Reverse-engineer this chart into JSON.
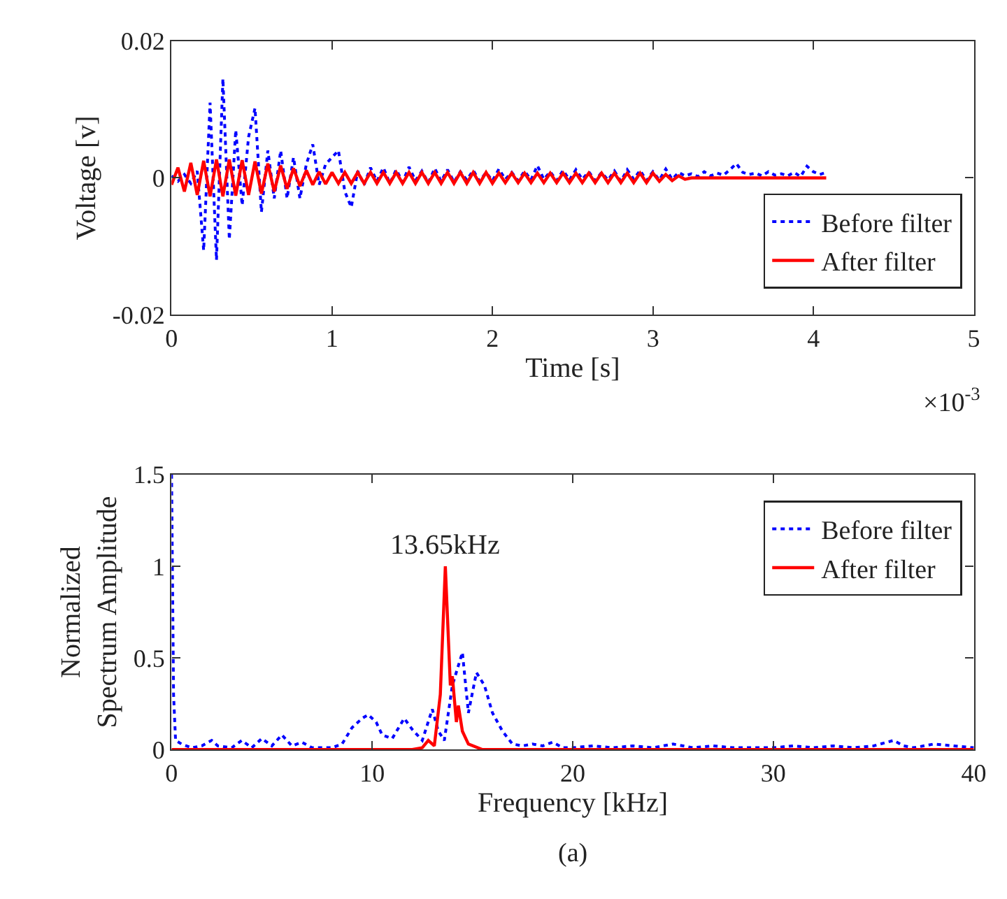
{
  "chart_data": [
    {
      "type": "line",
      "xlabel": "Time [s]",
      "ylabel": "Voltage [v]",
      "xlim": [
        0,
        5
      ],
      "ylim": [
        -0.02,
        0.02
      ],
      "xticks": [
        0,
        1,
        2,
        3,
        4,
        5
      ],
      "yticks": [
        -0.02,
        0,
        0.02
      ],
      "legend": "bottom right",
      "annotations": [
        "×10$^{-3}$"
      ],
      "x": [
        0,
        0.04,
        0.08,
        0.12,
        0.16,
        0.2,
        0.24,
        0.28,
        0.32,
        0.36,
        0.4,
        0.44,
        0.48,
        0.52,
        0.56,
        0.6,
        0.64,
        0.68,
        0.72,
        0.76,
        0.8,
        0.84,
        0.88,
        0.92,
        0.96,
        1,
        1.04,
        1.08,
        1.12,
        1.16,
        1.2,
        1.24,
        1.28,
        1.32,
        1.36,
        1.4,
        1.44,
        1.48,
        1.52,
        1.56,
        1.6,
        1.64,
        1.68,
        1.72,
        1.76,
        1.8,
        1.84,
        1.88,
        1.92,
        1.96,
        2,
        2.04,
        2.08,
        2.12,
        2.16,
        2.2,
        2.24,
        2.28,
        2.32,
        2.36,
        2.4,
        2.44,
        2.48,
        2.52,
        2.56,
        2.6,
        2.64,
        2.68,
        2.72,
        2.76,
        2.8,
        2.84,
        2.88,
        2.92,
        2.96,
        3,
        3.04,
        3.08,
        3.12,
        3.16,
        3.2,
        3.24,
        3.28,
        3.32,
        3.36,
        3.4,
        3.44,
        3.48,
        3.52,
        3.56,
        3.6,
        3.64,
        3.68,
        3.72,
        3.76,
        3.8,
        3.84,
        3.88,
        3.92,
        3.96,
        4,
        4.04,
        4.08
      ],
      "series": [
        {
          "name": "Before filter",
          "color": "#0000ff",
          "line_style": "dotted",
          "values": [
            0.0003,
            -0.0005,
            0.0005,
            -0.0008,
            0.001,
            -0.0106,
            0.011,
            -0.012,
            0.0145,
            -0.009,
            0.007,
            -0.004,
            0.006,
            0.0102,
            -0.005,
            0.004,
            -0.003,
            0.004,
            -0.003,
            0.003,
            -0.003,
            0.002,
            0.0049,
            -0.001,
            0.002,
            0.003,
            0.004,
            -0.002,
            -0.0043,
            0.001,
            -0.001,
            0.0015,
            -0.0005,
            0.0015,
            -0.0008,
            0.0012,
            -0.0006,
            0.0016,
            -0.0004,
            0.001,
            -0.0007,
            0.0014,
            -0.0005,
            0.0012,
            -0.0006,
            0.0009,
            -0.0003,
            0.0011,
            -0.0005,
            0.0008,
            -0.0004,
            0.0013,
            -0.0002,
            0.0008,
            -0.0004,
            0.001,
            -0.0003,
            0.0018,
            -0.0002,
            0.0009,
            -0.0004,
            0.0011,
            -0.0003,
            0.0012,
            -0.0002,
            0.0009,
            -0.0004,
            0.0008,
            -0.0003,
            0.001,
            -0.0005,
            0.0012,
            -0.0002,
            0.0011,
            -0.0004,
            0.0009,
            -0.0003,
            0.0013,
            -0.0002,
            0.0008,
            0.0003,
            0.0006,
            0.0002,
            0.0009,
            0.0003,
            0.0007,
            0.0004,
            0.0012,
            0.0021,
            0.0008,
            0.0005,
            0.0007,
            0.0003,
            0.0009,
            0.0004,
            0.0006,
            0.0003,
            0.0008,
            0.0002,
            0.0017,
            0.0009,
            0.0005,
            0.0008
          ]
        },
        {
          "name": "After filter",
          "color": "#ff0000",
          "line_style": "solid",
          "values": [
            -0.001,
            0.0015,
            -0.002,
            0.0022,
            -0.0025,
            0.0025,
            -0.0027,
            0.0027,
            -0.0027,
            0.0027,
            -0.0026,
            0.0026,
            -0.0025,
            0.0024,
            -0.0023,
            0.0021,
            -0.002,
            0.0018,
            -0.0016,
            0.0014,
            -0.0012,
            0.0011,
            -0.001,
            0.0009,
            -0.0009,
            0.0008,
            -0.0008,
            0.0008,
            -0.0008,
            0.0008,
            -0.0008,
            0.0008,
            -0.0008,
            0.0008,
            -0.0008,
            0.0008,
            -0.0008,
            0.0008,
            -0.0008,
            0.0008,
            -0.0008,
            0.0008,
            -0.0008,
            0.0008,
            -0.0008,
            0.0008,
            -0.0008,
            0.0008,
            -0.0008,
            0.0008,
            -0.0008,
            0.0007,
            -0.0007,
            0.0007,
            -0.0007,
            0.0007,
            -0.0007,
            0.0007,
            -0.0007,
            0.0007,
            -0.0007,
            0.0007,
            -0.0007,
            0.0007,
            -0.0007,
            0.0007,
            -0.0007,
            0.0007,
            -0.0007,
            0.0007,
            -0.0007,
            0.0007,
            -0.0007,
            0.0007,
            -0.0007,
            0.0007,
            -0.0005,
            0.0005,
            -0.0004,
            0.0003,
            -0.0002,
            0,
            0,
            0,
            0,
            0,
            0,
            0,
            0,
            0,
            0,
            0,
            0,
            0,
            0,
            0,
            0,
            0,
            0,
            0,
            0,
            0,
            0
          ]
        }
      ]
    },
    {
      "type": "line",
      "xlabel": "Frequency [kHz]",
      "ylabel": "Normalized\nSpectrum Amplitude",
      "xlim": [
        0,
        40
      ],
      "ylim": [
        0,
        1.5
      ],
      "xticks": [
        0,
        10,
        20,
        30,
        40
      ],
      "yticks": [
        0,
        0.5,
        1,
        1.5
      ],
      "legend": "top right",
      "annotations": [
        {
          "text": "13.65kHz",
          "x": 13.65,
          "y": 1
        },
        "(a)"
      ],
      "series": [
        {
          "name": "Before filter",
          "color": "#0000ff",
          "line_style": "dotted",
          "x": [
            0,
            0.1,
            0.2,
            0.5,
            1,
            1.5,
            2,
            2.3,
            3,
            3.5,
            4,
            4.5,
            5,
            5.5,
            6,
            6.5,
            7,
            8,
            8.5,
            9,
            9.5,
            9.8,
            10.2,
            10.5,
            11,
            11.6,
            12,
            12.5,
            13,
            13.3,
            13.6,
            14,
            14.5,
            14.8,
            15.2,
            15.6,
            16,
            16.5,
            17,
            17.5,
            18,
            18.5,
            19,
            19.5,
            20,
            21,
            22,
            23,
            24,
            25,
            26,
            27,
            28,
            29,
            30,
            31,
            32,
            33,
            34,
            35,
            36,
            36.5,
            37,
            38,
            39,
            40
          ],
          "values": [
            1.5,
            0.3,
            0.05,
            0.03,
            0.01,
            0.02,
            0.05,
            0.02,
            0.01,
            0.05,
            0.01,
            0.06,
            0.02,
            0.08,
            0.02,
            0.04,
            0.01,
            0.01,
            0.03,
            0.12,
            0.17,
            0.19,
            0.15,
            0.08,
            0.06,
            0.17,
            0.11,
            0.05,
            0.22,
            0.1,
            0.05,
            0.35,
            0.53,
            0.2,
            0.42,
            0.35,
            0.2,
            0.1,
            0.03,
            0.02,
            0.03,
            0.02,
            0.04,
            0.01,
            0.01,
            0.02,
            0.01,
            0.02,
            0.01,
            0.03,
            0.01,
            0.02,
            0.01,
            0.01,
            0.01,
            0.02,
            0.01,
            0.02,
            0.01,
            0.02,
            0.05,
            0.02,
            0.01,
            0.03,
            0.02,
            0.01
          ]
        },
        {
          "name": "After filter",
          "color": "#ff0000",
          "line_style": "solid",
          "x": [
            0,
            12,
            12.5,
            12.8,
            13.1,
            13.4,
            13.65,
            13.9,
            14,
            14.2,
            14.3,
            14.5,
            14.8,
            15.5,
            40
          ],
          "values": [
            0,
            0,
            0.01,
            0.05,
            0.02,
            0.3,
            1,
            0.35,
            0.4,
            0.15,
            0.24,
            0.1,
            0.03,
            0,
            0
          ]
        }
      ]
    }
  ]
}
